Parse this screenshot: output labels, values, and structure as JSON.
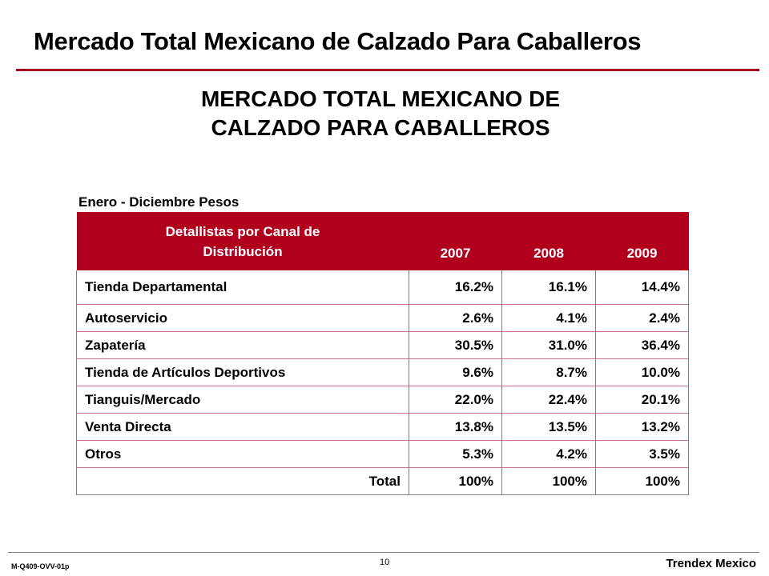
{
  "slide": {
    "title": "Mercado Total Mexicano de Calzado Para Caballeros",
    "subtitle_line1": "MERCADO TOTAL MEXICANO DE",
    "subtitle_line2": "CALZADO PARA CABALLEROS",
    "period_label": "Enero - Diciembre Pesos"
  },
  "table": {
    "header_label_line1": "Detallistas por Canal de",
    "header_label_line2": "Distribución",
    "years": [
      "2007",
      "2008",
      "2009"
    ],
    "rows": [
      {
        "label": "Tienda Departamental",
        "values": [
          "16.2%",
          "16.1%",
          "14.4%"
        ]
      },
      {
        "label": "Autoservicio",
        "values": [
          "2.6%",
          "4.1%",
          "2.4%"
        ]
      },
      {
        "label": "Zapatería",
        "values": [
          "30.5%",
          "31.0%",
          "36.4%"
        ]
      },
      {
        "label": "Tienda de Artículos Deportivos",
        "values": [
          "9.6%",
          "8.7%",
          "10.0%"
        ]
      },
      {
        "label": "Tianguis/Mercado",
        "values": [
          "22.0%",
          "22.4%",
          "20.1%"
        ]
      },
      {
        "label": "Venta Directa",
        "values": [
          "13.8%",
          "13.5%",
          "13.2%"
        ]
      },
      {
        "label": "Otros",
        "values": [
          "5.3%",
          "4.2%",
          "3.5%"
        ]
      }
    ],
    "total": {
      "label": "Total",
      "values": [
        "100%",
        "100%",
        "100%"
      ]
    }
  },
  "footer": {
    "code": "M-Q409-OVV-01p",
    "page": "10",
    "brand": "Trendex Mexico"
  },
  "colors": {
    "accent": "#b0001e",
    "rule": "#a50021"
  }
}
